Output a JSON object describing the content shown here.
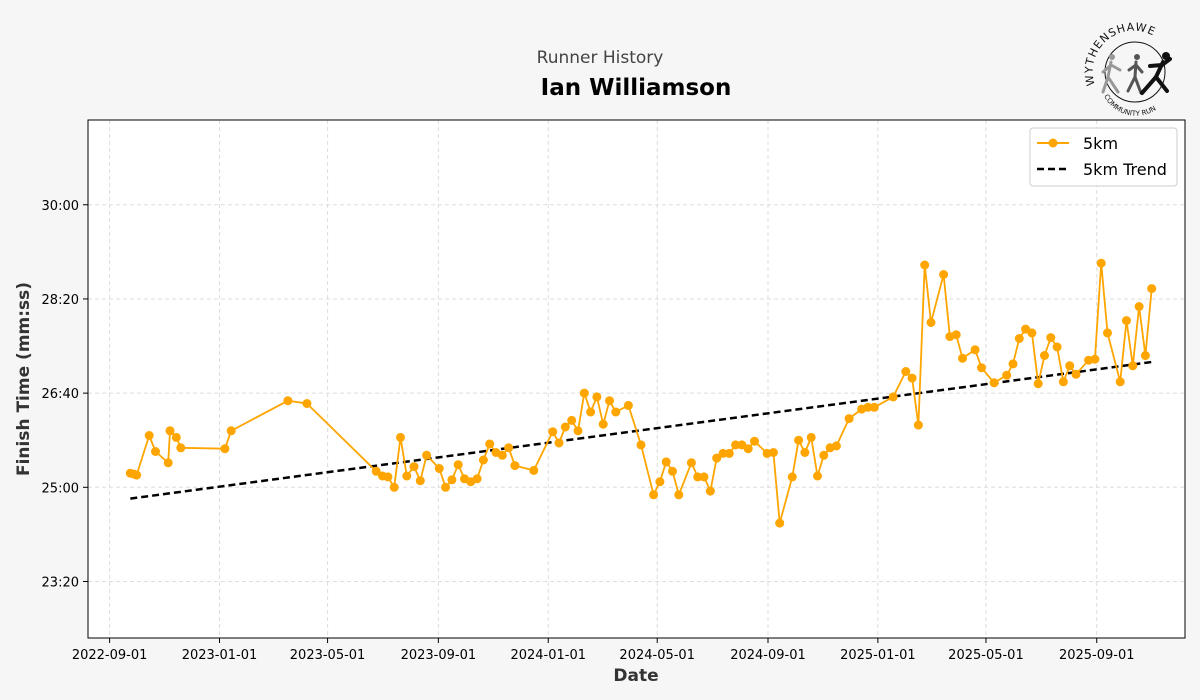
{
  "header": {
    "subtitle": "Runner History",
    "title": "Ian Williamson"
  },
  "logo": {
    "top_text": "WYTHENSHAWE",
    "bottom_text": "COMMUNITY RUN"
  },
  "colors": {
    "series": "#FFA500",
    "trend": "#000000",
    "grid": "#dddddd",
    "background": "#f6f6f6",
    "plot_background": "#ffffff"
  },
  "chart_data": {
    "type": "line",
    "xlabel": "Date",
    "ylabel": "Finish Time (mm:ss)",
    "grid": true,
    "legend_position": "top-right",
    "xlim": [
      "2022-08-08",
      "2025-12-08"
    ],
    "ylim": [
      "22:20",
      "31:30"
    ],
    "x_ticks": [
      "2022-09-01",
      "2023-01-01",
      "2023-05-01",
      "2023-09-01",
      "2024-01-01",
      "2024-05-01",
      "2024-09-01",
      "2025-01-01",
      "2025-05-01",
      "2025-09-01"
    ],
    "y_ticks": [
      "23:20",
      "25:00",
      "26:40",
      "28:20",
      "30:00"
    ],
    "series": [
      {
        "name": "5km",
        "style": "line-with-markers",
        "points": [
          [
            "2022-09-24",
            "25:15"
          ],
          [
            "2022-09-28",
            "25:14"
          ],
          [
            "2022-10-01",
            "25:13"
          ],
          [
            "2022-10-15",
            "25:55"
          ],
          [
            "2022-10-22",
            "25:38"
          ],
          [
            "2022-11-05",
            "25:26"
          ],
          [
            "2022-11-07",
            "26:00"
          ],
          [
            "2022-11-14",
            "25:53"
          ],
          [
            "2022-11-19",
            "25:42"
          ],
          [
            "2023-01-07",
            "25:41"
          ],
          [
            "2023-01-14",
            "26:00"
          ],
          [
            "2023-03-18",
            "26:32"
          ],
          [
            "2023-04-08",
            "26:29"
          ],
          [
            "2023-06-24",
            "25:17"
          ],
          [
            "2023-07-01",
            "25:12"
          ],
          [
            "2023-07-07",
            "25:11"
          ],
          [
            "2023-07-14",
            "25:00"
          ],
          [
            "2023-07-21",
            "25:53"
          ],
          [
            "2023-07-28",
            "25:12"
          ],
          [
            "2023-08-05",
            "25:22"
          ],
          [
            "2023-08-12",
            "25:07"
          ],
          [
            "2023-08-19",
            "25:34"
          ],
          [
            "2023-09-02",
            "25:20"
          ],
          [
            "2023-09-09",
            "25:00"
          ],
          [
            "2023-09-16",
            "25:08"
          ],
          [
            "2023-09-23",
            "25:24"
          ],
          [
            "2023-09-30",
            "25:09"
          ],
          [
            "2023-10-07",
            "25:06"
          ],
          [
            "2023-10-14",
            "25:09"
          ],
          [
            "2023-10-21",
            "25:29"
          ],
          [
            "2023-10-28",
            "25:46"
          ],
          [
            "2023-11-04",
            "25:37"
          ],
          [
            "2023-11-11",
            "25:34"
          ],
          [
            "2023-11-18",
            "25:42"
          ],
          [
            "2023-11-25",
            "25:23"
          ],
          [
            "2023-12-16",
            "25:18"
          ],
          [
            "2024-01-06",
            "25:59"
          ],
          [
            "2024-01-13",
            "25:47"
          ],
          [
            "2024-01-20",
            "26:04"
          ],
          [
            "2024-01-27",
            "26:11"
          ],
          [
            "2024-02-03",
            "26:00"
          ],
          [
            "2024-02-10",
            "26:40"
          ],
          [
            "2024-02-17",
            "26:20"
          ],
          [
            "2024-02-24",
            "26:36"
          ],
          [
            "2024-03-02",
            "26:07"
          ],
          [
            "2024-03-09",
            "26:32"
          ],
          [
            "2024-03-16",
            "26:20"
          ],
          [
            "2024-03-30",
            "26:27"
          ],
          [
            "2024-04-13",
            "25:45"
          ],
          [
            "2024-04-27",
            "24:52"
          ],
          [
            "2024-05-04",
            "25:06"
          ],
          [
            "2024-05-11",
            "25:27"
          ],
          [
            "2024-05-18",
            "25:17"
          ],
          [
            "2024-05-25",
            "24:52"
          ],
          [
            "2024-06-08",
            "25:26"
          ],
          [
            "2024-06-15",
            "25:11"
          ],
          [
            "2024-06-22",
            "25:11"
          ],
          [
            "2024-06-29",
            "24:56"
          ],
          [
            "2024-07-06",
            "25:31"
          ],
          [
            "2024-07-13",
            "25:36"
          ],
          [
            "2024-07-20",
            "25:36"
          ],
          [
            "2024-07-27",
            "25:45"
          ],
          [
            "2024-08-03",
            "25:45"
          ],
          [
            "2024-08-10",
            "25:41"
          ],
          [
            "2024-08-17",
            "25:49"
          ],
          [
            "2024-08-31",
            "25:36"
          ],
          [
            "2024-09-07",
            "25:37"
          ],
          [
            "2024-09-14",
            "24:22"
          ],
          [
            "2024-09-28",
            "25:11"
          ],
          [
            "2024-10-05",
            "25:50"
          ],
          [
            "2024-10-12",
            "25:37"
          ],
          [
            "2024-10-19",
            "25:53"
          ],
          [
            "2024-10-26",
            "25:12"
          ],
          [
            "2024-11-02",
            "25:34"
          ],
          [
            "2024-11-09",
            "25:42"
          ],
          [
            "2024-11-16",
            "25:44"
          ],
          [
            "2024-11-30",
            "26:13"
          ],
          [
            "2024-12-14",
            "26:23"
          ],
          [
            "2024-12-21",
            "26:25"
          ],
          [
            "2024-12-28",
            "26:25"
          ],
          [
            "2025-01-18",
            "26:36"
          ],
          [
            "2025-02-01",
            "27:03"
          ],
          [
            "2025-02-08",
            "26:56"
          ],
          [
            "2025-02-15",
            "26:06"
          ],
          [
            "2025-02-22",
            "28:56"
          ],
          [
            "2025-03-01",
            "27:55"
          ],
          [
            "2025-03-15",
            "28:46"
          ],
          [
            "2025-03-22",
            "27:40"
          ],
          [
            "2025-03-29",
            "27:42"
          ],
          [
            "2025-04-05",
            "27:17"
          ],
          [
            "2025-04-19",
            "27:26"
          ],
          [
            "2025-04-26",
            "27:07"
          ],
          [
            "2025-05-10",
            "26:51"
          ],
          [
            "2025-05-24",
            "26:59"
          ],
          [
            "2025-05-31",
            "27:11"
          ],
          [
            "2025-06-07",
            "27:38"
          ],
          [
            "2025-06-14",
            "27:48"
          ],
          [
            "2025-06-21",
            "27:44"
          ],
          [
            "2025-06-28",
            "26:50"
          ],
          [
            "2025-07-05",
            "27:20"
          ],
          [
            "2025-07-12",
            "27:39"
          ],
          [
            "2025-07-19",
            "27:29"
          ],
          [
            "2025-07-26",
            "26:52"
          ],
          [
            "2025-08-02",
            "27:09"
          ],
          [
            "2025-08-09",
            "27:00"
          ],
          [
            "2025-08-23",
            "27:15"
          ],
          [
            "2025-08-30",
            "27:16"
          ],
          [
            "2025-09-06",
            "28:58"
          ],
          [
            "2025-09-13",
            "27:44"
          ],
          [
            "2025-09-27",
            "26:52"
          ],
          [
            "2025-10-04",
            "27:57"
          ],
          [
            "2025-10-11",
            "27:09"
          ],
          [
            "2025-10-18",
            "28:12"
          ],
          [
            "2025-10-25",
            "27:20"
          ],
          [
            "2025-11-01",
            "28:31"
          ]
        ]
      },
      {
        "name": "5km Trend",
        "style": "dashed-line",
        "points": [
          [
            "2022-09-24",
            "24:48"
          ],
          [
            "2025-11-01",
            "27:13"
          ]
        ]
      }
    ]
  }
}
